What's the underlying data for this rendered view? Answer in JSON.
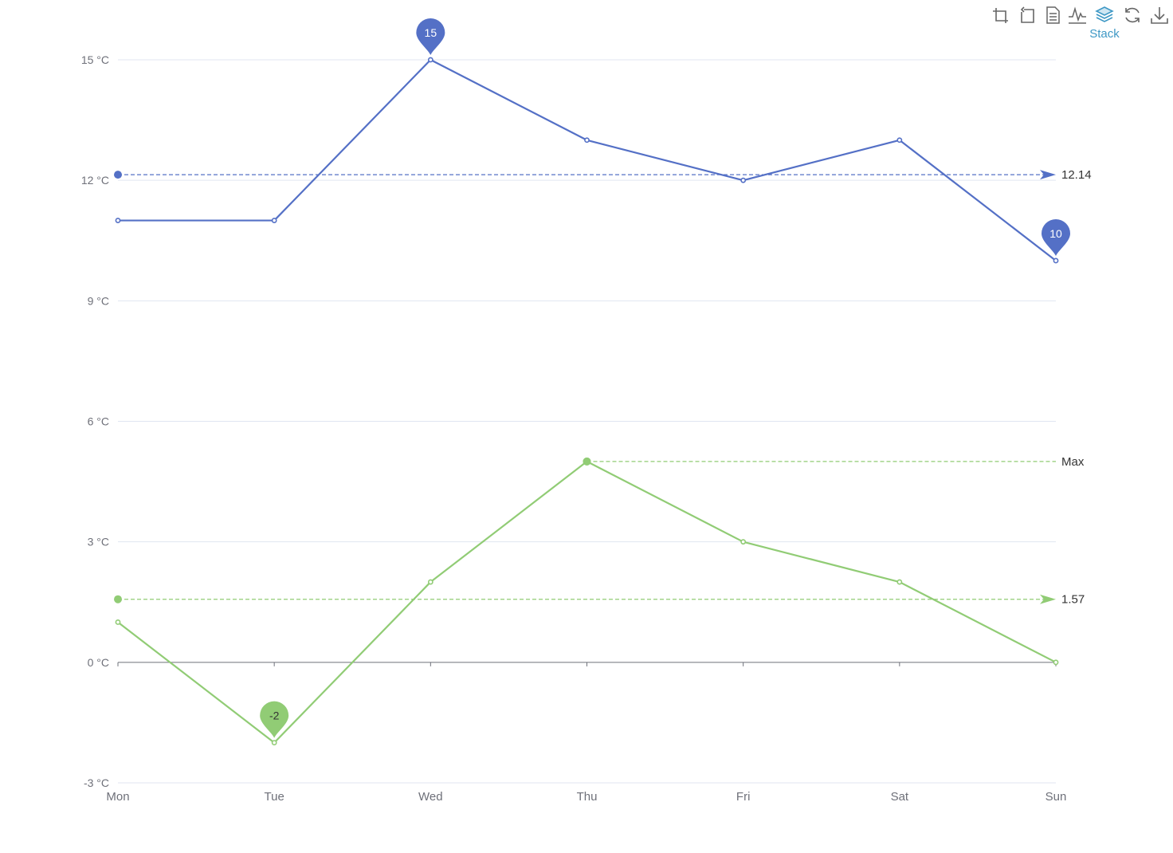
{
  "toolbox": {
    "items": [
      {
        "icon": "zoom-icon"
      },
      {
        "icon": "zoom-reset-icon"
      },
      {
        "icon": "data-view-icon"
      },
      {
        "icon": "line-chart-icon"
      },
      {
        "icon": "stack-icon",
        "label": "Stack",
        "active": true
      },
      {
        "icon": "restore-icon"
      },
      {
        "icon": "download-icon"
      }
    ],
    "icon_color": "#666666",
    "active_color": "#3e98c5"
  },
  "chart_data": {
    "type": "line",
    "categories": [
      "Mon",
      "Tue",
      "Wed",
      "Thu",
      "Fri",
      "Sat",
      "Sun"
    ],
    "y_axis": {
      "ticks": [
        -3,
        0,
        3,
        6,
        9,
        12,
        15
      ],
      "unit_suffix": " °C",
      "ylim": [
        -3,
        15
      ]
    },
    "grid": true,
    "series": [
      {
        "color": "#5470c6",
        "values": [
          11,
          11,
          15,
          13,
          12,
          13,
          10
        ],
        "mark_points": [
          {
            "label": "15",
            "category": "Wed",
            "value": 15
          },
          {
            "label": "10",
            "category": "Sun",
            "value": 10
          }
        ],
        "mark_lines": [
          {
            "label": "12.14",
            "value": 12.14
          }
        ]
      },
      {
        "color": "#91cc75",
        "values": [
          1,
          -2,
          2,
          5,
          3,
          2,
          0
        ],
        "mark_points": [
          {
            "label": "-2",
            "category": "Tue",
            "value": -2
          }
        ],
        "mark_lines": [
          {
            "label": "1.57",
            "value": 1.57
          },
          {
            "label": "Max",
            "value": 5,
            "from_category": "Thu"
          }
        ]
      }
    ]
  }
}
